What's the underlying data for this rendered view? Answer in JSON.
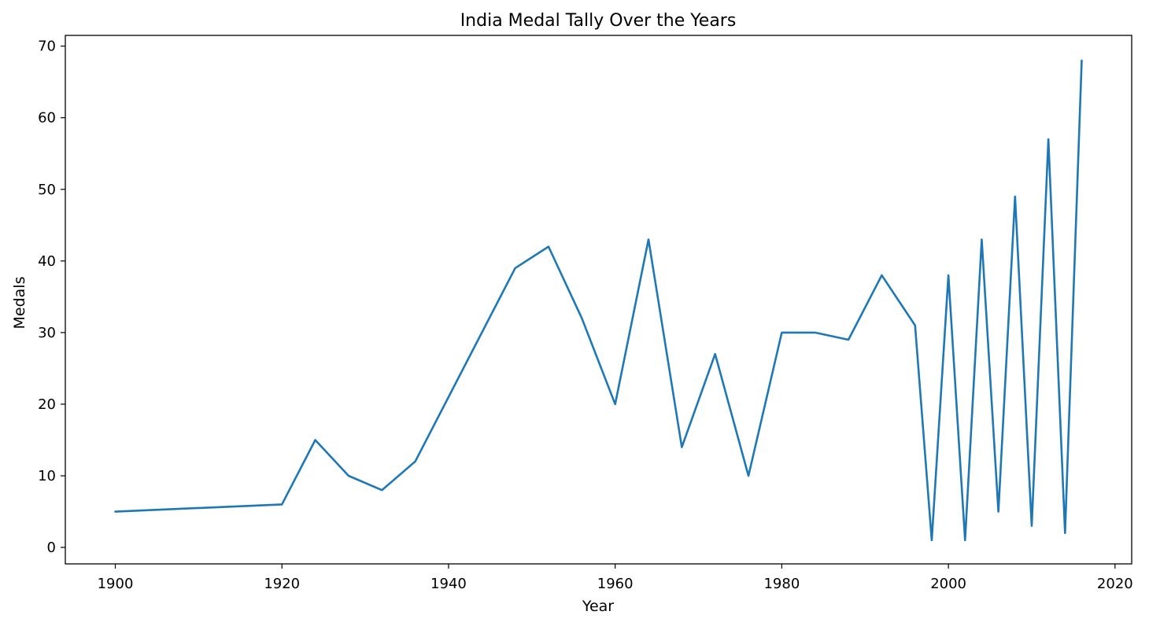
{
  "chart_data": {
    "type": "line",
    "title": "India Medal Tally Over the Years",
    "xlabel": "Year",
    "ylabel": "Medals",
    "xlim": [
      1894,
      2022
    ],
    "ylim": [
      -2.3,
      71.5
    ],
    "xticks": [
      1900,
      1920,
      1940,
      1960,
      1980,
      2000,
      2020
    ],
    "yticks": [
      0,
      10,
      20,
      30,
      40,
      50,
      60,
      70
    ],
    "grid": false,
    "legend": "none",
    "series": [
      {
        "color": "#1f77b4",
        "x": [
          1900,
          1920,
          1924,
          1928,
          1932,
          1936,
          1948,
          1952,
          1956,
          1960,
          1964,
          1968,
          1972,
          1976,
          1980,
          1984,
          1988,
          1992,
          1996,
          1998,
          2000,
          2002,
          2004,
          2006,
          2008,
          2010,
          2012,
          2014,
          2016
        ],
        "y": [
          5,
          6,
          15,
          10,
          8,
          12,
          39,
          42,
          32,
          20,
          43,
          14,
          27,
          10,
          30,
          30,
          29,
          38,
          31,
          1,
          38,
          1,
          43,
          5,
          49,
          3,
          57,
          2,
          68
        ]
      }
    ]
  }
}
